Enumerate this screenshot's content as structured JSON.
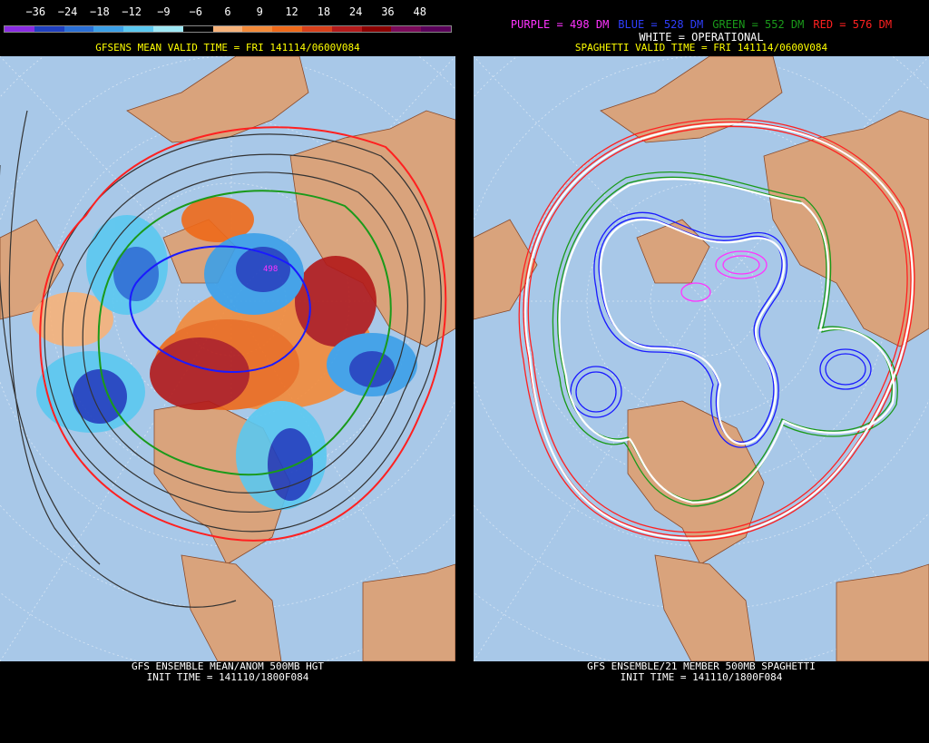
{
  "left_panel": {
    "colorbar_ticks": [
      "−36",
      "−24",
      "−18",
      "−12",
      "−9",
      "−6",
      "6",
      "9",
      "12",
      "18",
      "24",
      "36",
      "48"
    ],
    "colorbar_colors": [
      "#8a2be2",
      "#1f3fbf",
      "#2a6fd6",
      "#3ca0e8",
      "#5bc8f0",
      "#9ee8f5",
      "#000000",
      "#f7b27a",
      "#f48b3a",
      "#ef6a1a",
      "#d8401a",
      "#b31a1a",
      "#8b0000",
      "#7a0a5a",
      "#5a005a"
    ],
    "valid_title": "GFSENS MEAN VALID TIME = FRI 141114/0600V084",
    "bottom_line1": "GFS ENSEMBLE MEAN/ANOM 500MB HGT",
    "bottom_line2": "INIT TIME = 141110/1800F084"
  },
  "right_panel": {
    "legend": [
      {
        "text": "PURPLE = 498 DM",
        "color": "#ff33ff"
      },
      {
        "text": "BLUE = 528 DM",
        "color": "#2f3fff"
      },
      {
        "text": "GREEN = 552 DM",
        "color": "#1a9a1a"
      },
      {
        "text": "RED = 576 DM",
        "color": "#ff2020"
      }
    ],
    "operational": "WHITE = OPERATIONAL",
    "valid_title": "SPAGHETTI VALID TIME = FRI 141114/0600V084",
    "bottom_line1": "GFS ENSEMBLE/21 MEMBER 500MB SPAGHETTI",
    "bottom_line2": "INIT TIME = 141110/1800F084"
  },
  "colors": {
    "ocean": "#a8c8e8",
    "land": "#d9a37c",
    "border": "#8a4a2a"
  }
}
